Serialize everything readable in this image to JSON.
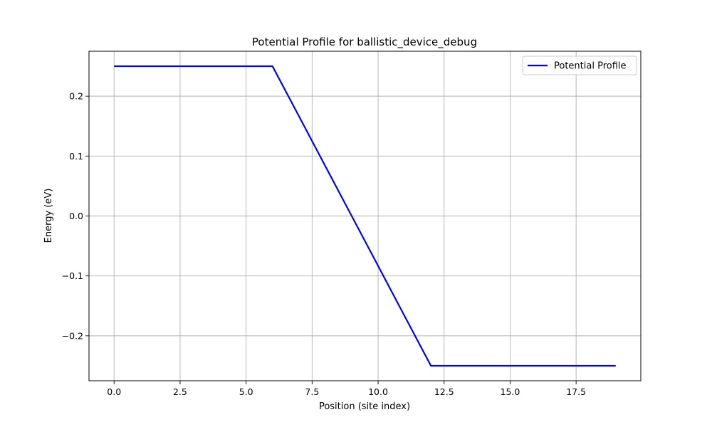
{
  "chart_data": {
    "type": "line",
    "title": "Potential Profile for ballistic_device_debug",
    "xlabel": "Position (site index)",
    "ylabel": "Energy (eV)",
    "xlim": [
      -0.95,
      19.95
    ],
    "ylim": [
      -0.275,
      0.275
    ],
    "xticks": [
      0.0,
      2.5,
      5.0,
      7.5,
      10.0,
      12.5,
      15.0,
      17.5
    ],
    "xtick_labels": [
      "0.0",
      "2.5",
      "5.0",
      "7.5",
      "10.0",
      "12.5",
      "15.0",
      "17.5"
    ],
    "yticks": [
      -0.2,
      -0.1,
      0.0,
      0.1,
      0.2
    ],
    "ytick_labels": [
      "−0.2",
      "−0.1",
      "0.0",
      "0.1",
      "0.2"
    ],
    "grid": true,
    "legend_position": "top-right",
    "series": [
      {
        "name": "Potential Profile",
        "color": "#0000ff",
        "x": [
          0,
          1,
          2,
          3,
          4,
          5,
          6,
          7,
          8,
          9,
          10,
          11,
          12,
          13,
          14,
          15,
          16,
          17,
          18,
          19
        ],
        "y": [
          0.25,
          0.25,
          0.25,
          0.25,
          0.25,
          0.25,
          0.25,
          0.1667,
          0.0833,
          0.0,
          -0.0833,
          -0.1667,
          -0.25,
          -0.25,
          -0.25,
          -0.25,
          -0.25,
          -0.25,
          -0.25,
          -0.25
        ]
      }
    ]
  }
}
